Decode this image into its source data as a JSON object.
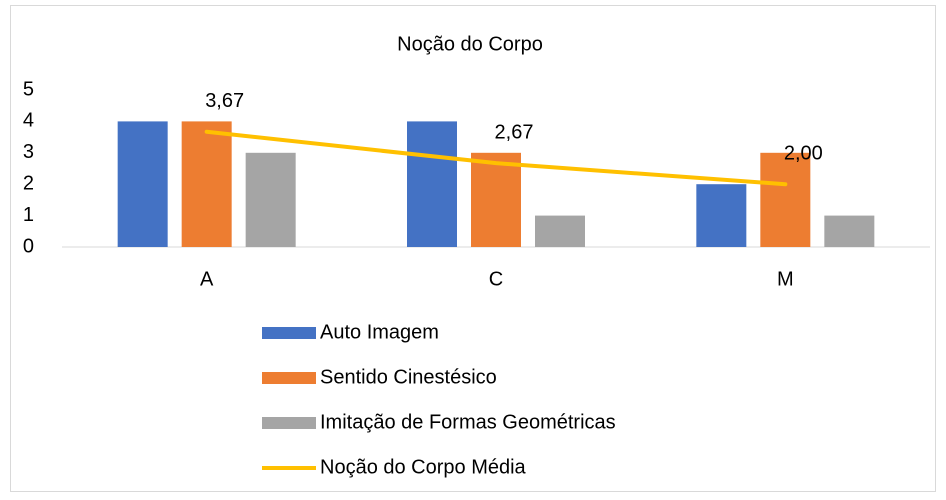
{
  "chart_data": {
    "type": "bar",
    "title": "Noção do Corpo",
    "categories": [
      "A",
      "C",
      "M"
    ],
    "series": [
      {
        "name": "Auto Imagem",
        "color": "#4472c4",
        "values": [
          4,
          4,
          2
        ]
      },
      {
        "name": "Sentido Cinestésico",
        "color": "#ed7d31",
        "values": [
          4,
          3,
          3
        ]
      },
      {
        "name": "Imitação de Formas Geométricas",
        "color": "#a5a5a5",
        "values": [
          3,
          1,
          1
        ]
      },
      {
        "name": "Noção do Corpo Média",
        "color": "#ffc000",
        "type": "line",
        "values": [
          3.67,
          2.67,
          2.0
        ],
        "value_labels": [
          "3,67",
          "2,67",
          "2,00"
        ]
      }
    ],
    "ylim": [
      0,
      5
    ],
    "yticks": [
      0,
      1,
      2,
      3,
      4,
      5
    ],
    "grid": false,
    "legend": "bottom"
  }
}
